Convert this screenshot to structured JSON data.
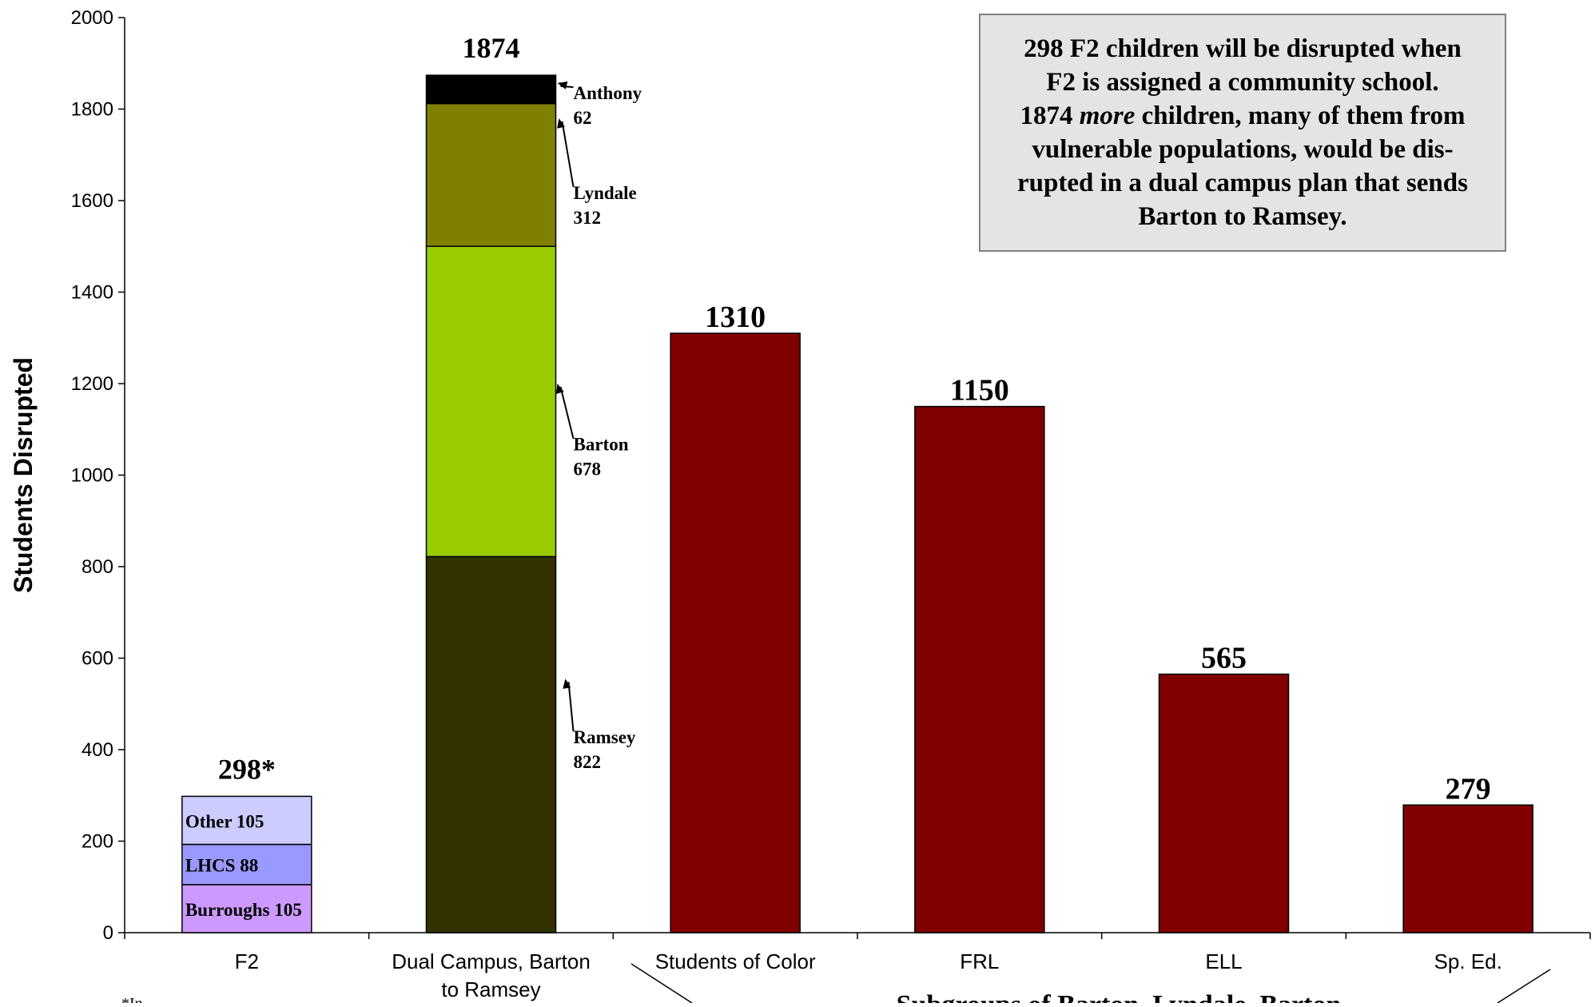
{
  "chart_data": {
    "type": "bar",
    "ylabel": "Students Disrupted",
    "ylim": [
      0,
      2000
    ],
    "y_ticks": [
      0,
      200,
      400,
      600,
      800,
      1000,
      1200,
      1400,
      1600,
      1800,
      2000
    ],
    "categories": [
      "F2",
      "Dual Campus, Barton to Ramsey",
      "Students of Color",
      "FRL",
      "ELL",
      "Sp. Ed."
    ],
    "totals_labels": [
      "298*",
      "1874",
      "1310",
      "1150",
      "565",
      "279"
    ],
    "stacks": [
      {
        "category": "F2",
        "segments": [
          {
            "name": "Burroughs",
            "value": 105,
            "label": "Burroughs 105",
            "color": "#cc99ff"
          },
          {
            "name": "LHCS",
            "value": 88,
            "label": "LHCS 88",
            "color": "#9999ff"
          },
          {
            "name": "Other",
            "value": 105,
            "label": "Other 105",
            "color": "#ccccff"
          }
        ]
      },
      {
        "category": "Dual Campus, Barton to Ramsey",
        "segments": [
          {
            "name": "Ramsey",
            "value": 822,
            "label": "Ramsey",
            "value_label": "822",
            "color": "#333300"
          },
          {
            "name": "Barton",
            "value": 678,
            "label": "Barton",
            "value_label": "678",
            "color": "#99cc00"
          },
          {
            "name": "Lyndale",
            "value": 312,
            "label": "Lyndale",
            "value_label": "312",
            "color": "#808000"
          },
          {
            "name": "Anthony",
            "value": 62,
            "label": "Anthony",
            "value_label": "62",
            "color": "#000000"
          }
        ]
      }
    ],
    "simple_bars": [
      {
        "category": "Students of Color",
        "value": 1310,
        "color": "#800000"
      },
      {
        "category": "FRL",
        "value": 1150,
        "color": "#800000"
      },
      {
        "category": "ELL",
        "value": 565,
        "color": "#800000"
      },
      {
        "category": "Sp. Ed.",
        "value": 279,
        "color": "#800000"
      }
    ],
    "callout": {
      "line1": "298 F2 children will be disrupted when",
      "line2": "F2 is assigned a community school.",
      "line3_a": "1874 ",
      "line3_em": "more",
      "line3_b": " children, many of them from",
      "line4": "vulnerable populations, would be dis-",
      "line5": "rupted in a dual campus plan that sends",
      "line6": "Barton to Ramsey."
    },
    "footnote_partial": "*In ...",
    "group_label_partial": "Subgroups of Barton, Lyndale, Barton"
  }
}
